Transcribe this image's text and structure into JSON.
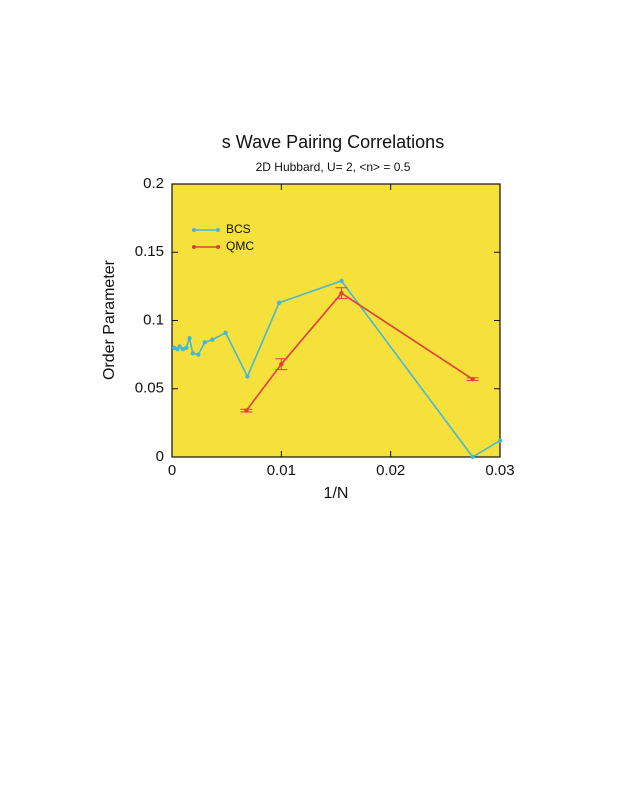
{
  "chart_data": {
    "type": "line",
    "title": "s Wave Pairing Correlations",
    "subtitle": "2D Hubbard, U= 2, <n> = 0.5",
    "x_label": "1/N",
    "y_label": "Order Parameter",
    "xlim": [
      0,
      0.03
    ],
    "xticks": [
      0,
      0.01,
      0.02,
      0.03
    ],
    "ylim": [
      0,
      0.2
    ],
    "yticks": [
      0,
      0.05,
      0.1,
      0.15,
      0.2
    ],
    "background": "#f6e03c",
    "legend": "upper left",
    "series": [
      {
        "name": "BCS",
        "color": "#45b9d4",
        "x": [
          0.0002,
          0.0005,
          0.0007,
          0.001,
          0.0013,
          0.0016,
          0.0019,
          0.0024,
          0.003,
          0.0037,
          0.0049,
          0.0069,
          0.0098,
          0.0155,
          0.0275,
          0.03
        ],
        "values": [
          0.08,
          0.079,
          0.081,
          0.079,
          0.08,
          0.087,
          0.076,
          0.075,
          0.084,
          0.086,
          0.091,
          0.059,
          0.113,
          0.129,
          0.0,
          0.012
        ]
      },
      {
        "name": "QMC",
        "color": "#e2403a",
        "x": [
          0.0068,
          0.01,
          0.0155,
          0.0275
        ],
        "values": [
          0.034,
          0.068,
          0.12,
          0.057
        ],
        "errors": [
          0.001,
          0.004,
          0.004,
          0.001
        ]
      }
    ]
  }
}
